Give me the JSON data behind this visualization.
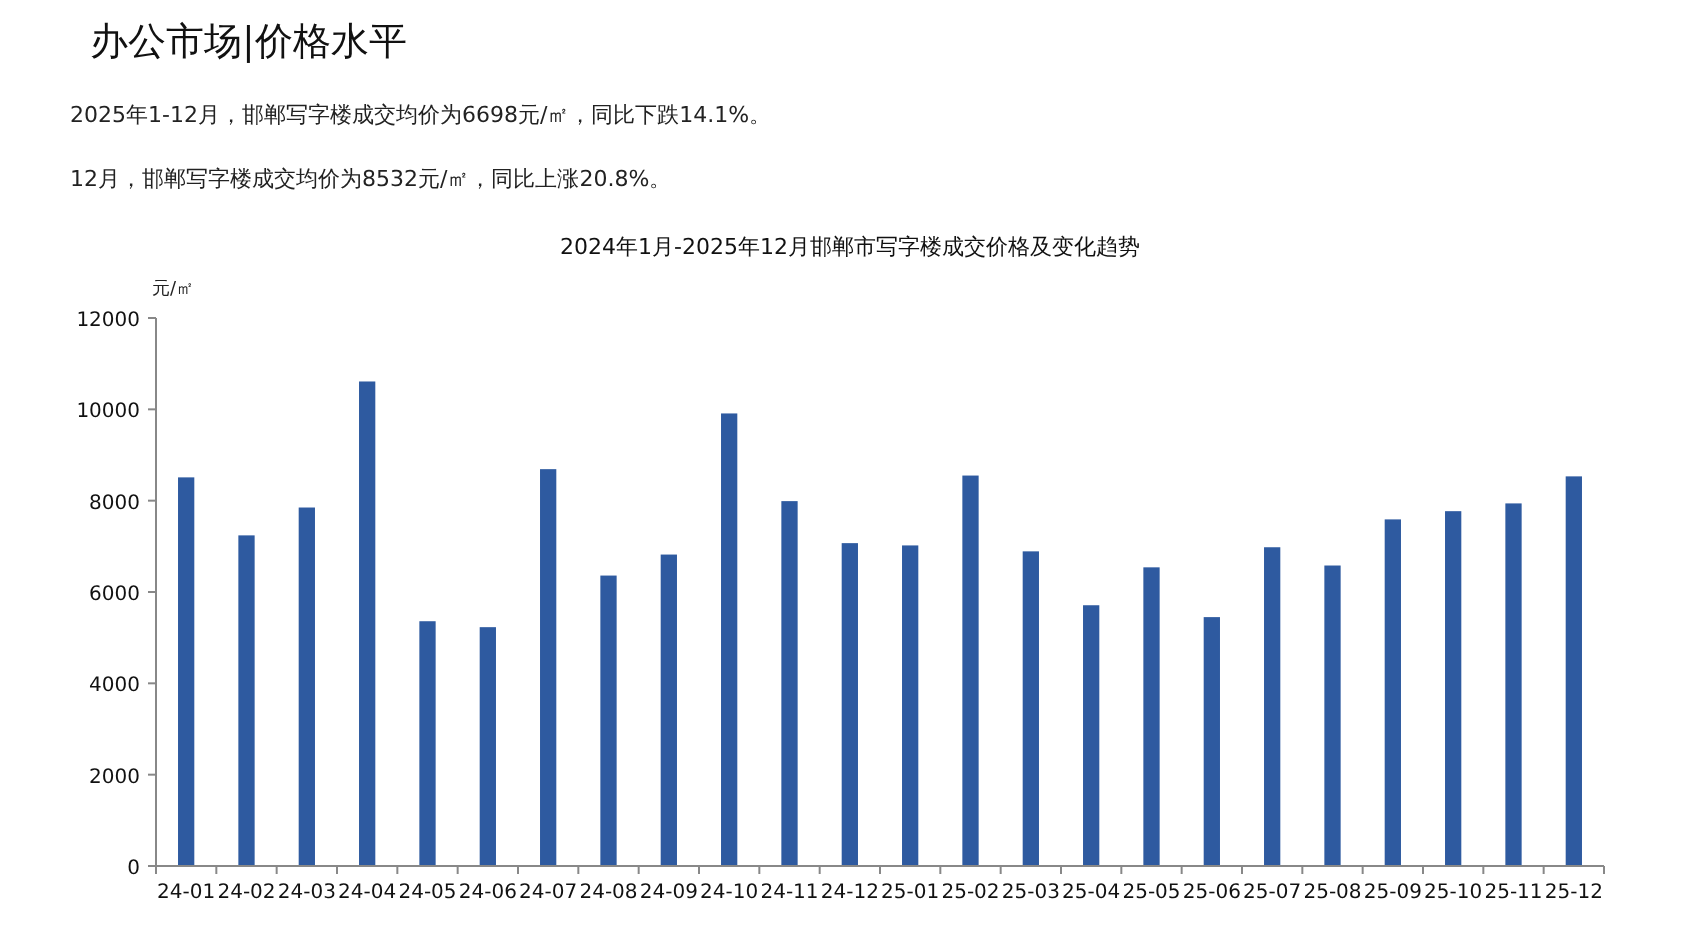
{
  "chart_data": {
    "type": "bar",
    "title": "2024年1月-2025年12月邯郸市写字楼成交价格及变化趋势",
    "ylabel": "元/㎡",
    "annotations": [
      "办公市场|价格水平",
      "2025年1-12月，邯郸写字楼成交均价为6698元/㎡，同比下跌14.1%。",
      "12月，邯郸写字楼成交均价为8532元/㎡，同比上涨20.8%。"
    ],
    "categories": [
      "24-01",
      "24-02",
      "24-03",
      "24-04",
      "24-05",
      "24-06",
      "24-07",
      "24-08",
      "24-09",
      "24-10",
      "24-11",
      "24-12",
      "25-01",
      "25-02",
      "25-03",
      "25-04",
      "25-05",
      "25-06",
      "25-07",
      "25-08",
      "25-09",
      "25-10",
      "25-11",
      "25-12"
    ],
    "values": [
      8510,
      7240,
      7850,
      10610,
      5360,
      5230,
      8690,
      6360,
      6820,
      9910,
      7990,
      7070,
      7020,
      8550,
      6890,
      5710,
      6540,
      5450,
      6980,
      6580,
      7590,
      7770,
      7940,
      8532
    ],
    "color": "#2e5aa0",
    "ylim": [
      0,
      12000
    ],
    "yticks": [
      0,
      2000,
      4000,
      6000,
      8000,
      10000,
      12000
    ],
    "grid": false
  }
}
